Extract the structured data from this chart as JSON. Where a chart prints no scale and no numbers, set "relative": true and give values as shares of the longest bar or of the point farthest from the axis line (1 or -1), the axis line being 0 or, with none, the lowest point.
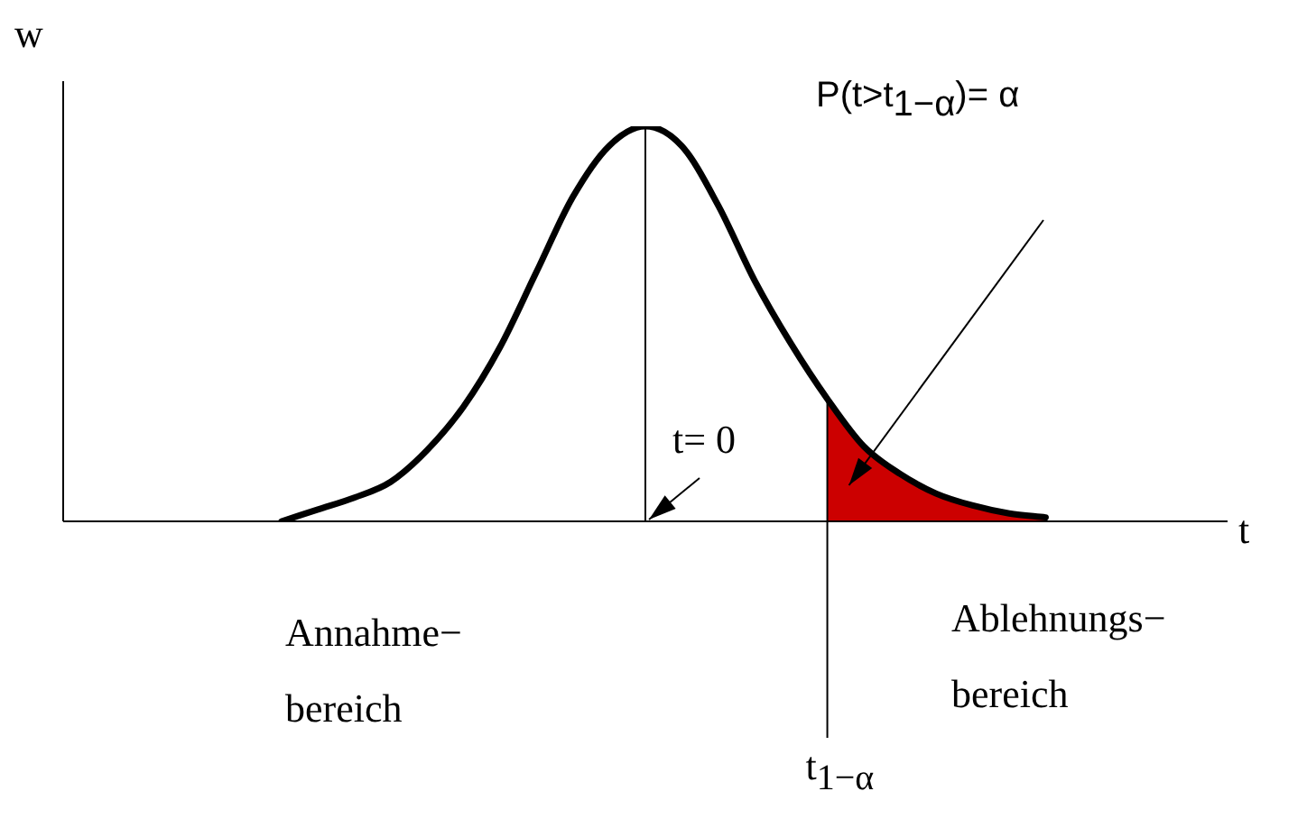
{
  "chart_data": {
    "type": "line",
    "relative": true,
    "title": "P(t>t$_{1−α}$)= α",
    "xlabel": "t",
    "ylabel": "w",
    "categories": [
      null,
      null,
      null,
      null,
      null,
      null,
      null,
      null,
      null,
      null,
      null,
      null,
      null,
      null,
      null,
      null,
      null,
      null,
      null,
      null,
      null,
      null,
      null,
      null,
      null,
      null,
      null,
      null,
      null,
      null,
      null,
      null,
      null
    ],
    "series": [
      {
        "color": "#000000",
        "values": [
          null,
          null,
          null,
          null,
          null,
          null,
          0,
          0.03,
          0.06,
          0.1,
          0.18,
          0.29,
          0.44,
          0.63,
          0.82,
          0.95,
          1,
          0.95,
          0.8,
          0.61,
          0.45,
          0.31,
          0.19,
          0.12,
          0.07,
          0.04,
          0.02,
          0.01,
          null,
          null,
          null,
          null,
          null
        ]
      },
      {
        "type": "area",
        "color": "#cc0000",
        "values": [
          null,
          null,
          null,
          null,
          null,
          null,
          null,
          null,
          null,
          null,
          null,
          null,
          null,
          null,
          null,
          null,
          null,
          null,
          null,
          null,
          null,
          0.31,
          0.19,
          0.12,
          0.07,
          0.04,
          0.02,
          0.01,
          null,
          null,
          null,
          null,
          null
        ]
      }
    ],
    "annotations": [
      "t= 0",
      "t$_{1−α}$",
      "Annahme−\nbereich",
      "Ablehnungs−\nbereich"
    ],
    "legend": false,
    "marker": "none",
    "line_style": "solid"
  }
}
